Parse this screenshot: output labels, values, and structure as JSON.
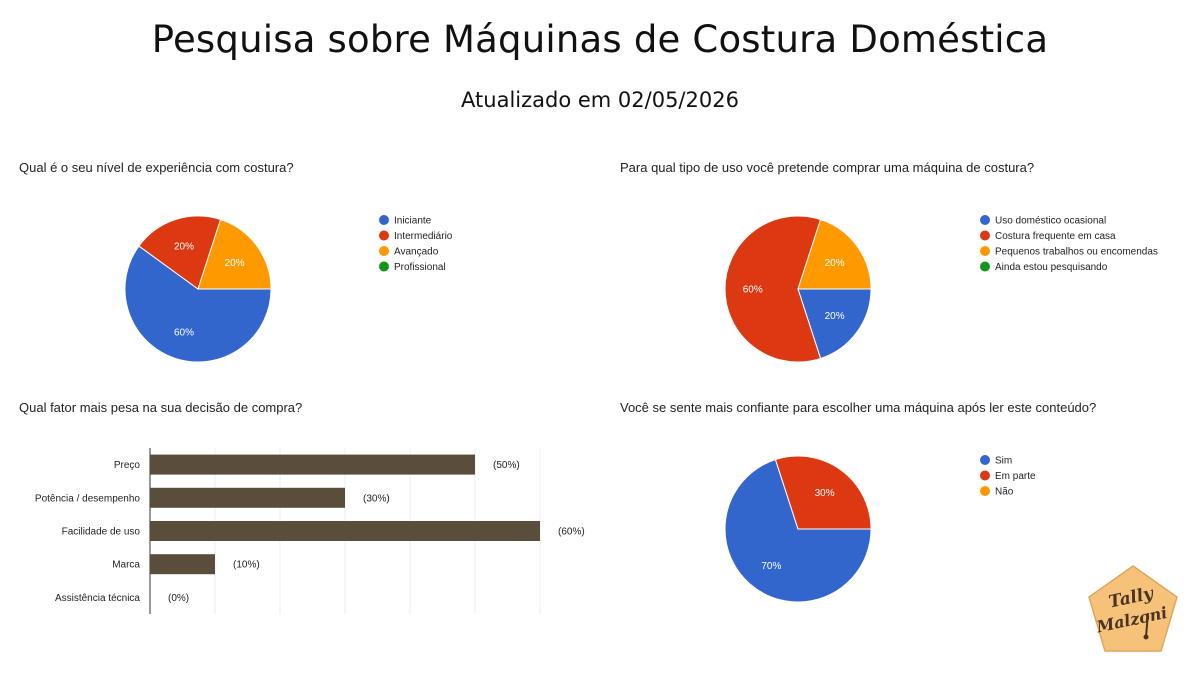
{
  "header": {
    "title": "Pesquisa sobre Máquinas de Costura Doméstica",
    "subtitle": "Atualizado em 02/05/2026"
  },
  "colors": {
    "blue": "#3366cc",
    "red": "#dc3912",
    "orange": "#ff9900",
    "green": "#109618",
    "bar": "#5b4d3b"
  },
  "chart_data": [
    {
      "type": "pie",
      "title": "Qual é o seu nível de experiência com costura?",
      "categories": [
        "Iniciante",
        "Intermediário",
        "Avançado",
        "Profissional"
      ],
      "values": [
        60,
        20,
        20,
        0
      ],
      "labels": [
        "60%",
        "20%",
        "20%",
        ""
      ],
      "colors": [
        "#3366cc",
        "#dc3912",
        "#ff9900",
        "#109618"
      ],
      "legend": "right"
    },
    {
      "type": "pie",
      "title": "Para qual tipo de uso você pretende comprar uma máquina de costura?",
      "categories": [
        "Uso doméstico ocasional",
        "Costura frequente em casa",
        "Pequenos trabalhos ou encomendas",
        "Ainda estou pesquisando"
      ],
      "values": [
        20,
        60,
        20,
        0
      ],
      "labels": [
        "20%",
        "60%",
        "20%",
        ""
      ],
      "colors": [
        "#3366cc",
        "#dc3912",
        "#ff9900",
        "#109618"
      ],
      "legend": "right"
    },
    {
      "type": "bar",
      "orientation": "horizontal",
      "title": "Qual fator mais pesa na sua decisão de compra?",
      "categories": [
        "Preço",
        "Potência / desempenho",
        "Facilidade de uso",
        "Marca",
        "Assistência técnica"
      ],
      "values": [
        50,
        30,
        60,
        10,
        0
      ],
      "labels": [
        "(50%)",
        "(30%)",
        "(60%)",
        "(10%)",
        "(0%)"
      ],
      "xlim": [
        0,
        60
      ],
      "grid": true,
      "color": "#5b4d3b"
    },
    {
      "type": "pie",
      "title": "Você se sente mais confiante para escolher uma máquina após ler este conteúdo?",
      "categories": [
        "Sim",
        "Em parte",
        "Não"
      ],
      "values": [
        70,
        30,
        0
      ],
      "labels": [
        "70%",
        "30%",
        ""
      ],
      "colors": [
        "#3366cc",
        "#dc3912",
        "#ff9900"
      ],
      "legend": "right"
    }
  ],
  "logo": {
    "lines": [
      "Tally",
      "Malzoni"
    ],
    "color": "#f6c27a"
  }
}
